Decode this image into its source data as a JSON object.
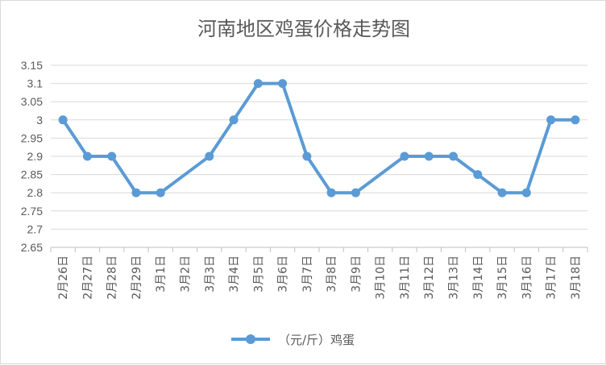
{
  "chart_data": {
    "type": "line",
    "title": "河南地区鸡蛋价格走势图",
    "categories": [
      "2月26日",
      "2月27日",
      "2月28日",
      "2月29日",
      "3月1日",
      "3月2日",
      "3月3日",
      "3月4日",
      "3月5日",
      "3月6日",
      "3月7日",
      "3月8日",
      "3月9日",
      "3月10日",
      "3月11日",
      "3月12日",
      "3月13日",
      "3月14日",
      "3月15日",
      "3月16日",
      "3月17日",
      "3月18日"
    ],
    "series": [
      {
        "name": "（元/斤）鸡蛋",
        "values": [
          3.0,
          2.9,
          2.9,
          2.8,
          2.8,
          null,
          2.9,
          3.0,
          3.1,
          3.1,
          2.9,
          2.8,
          2.8,
          null,
          2.9,
          2.9,
          2.9,
          2.85,
          2.8,
          2.8,
          3.0,
          3.0
        ]
      }
    ],
    "ylim": [
      2.65,
      3.15
    ],
    "yticks": [
      "2.65",
      "2.7",
      "2.75",
      "2.8",
      "2.85",
      "2.9",
      "2.95",
      "3",
      "3.05",
      "3.1",
      "3.15"
    ],
    "grid": true,
    "legend": "bottom",
    "colors": {
      "line": "#5b9bd5",
      "grid": "#d9d9d9",
      "axis": "#bfbfbf",
      "text": "#595959"
    }
  }
}
